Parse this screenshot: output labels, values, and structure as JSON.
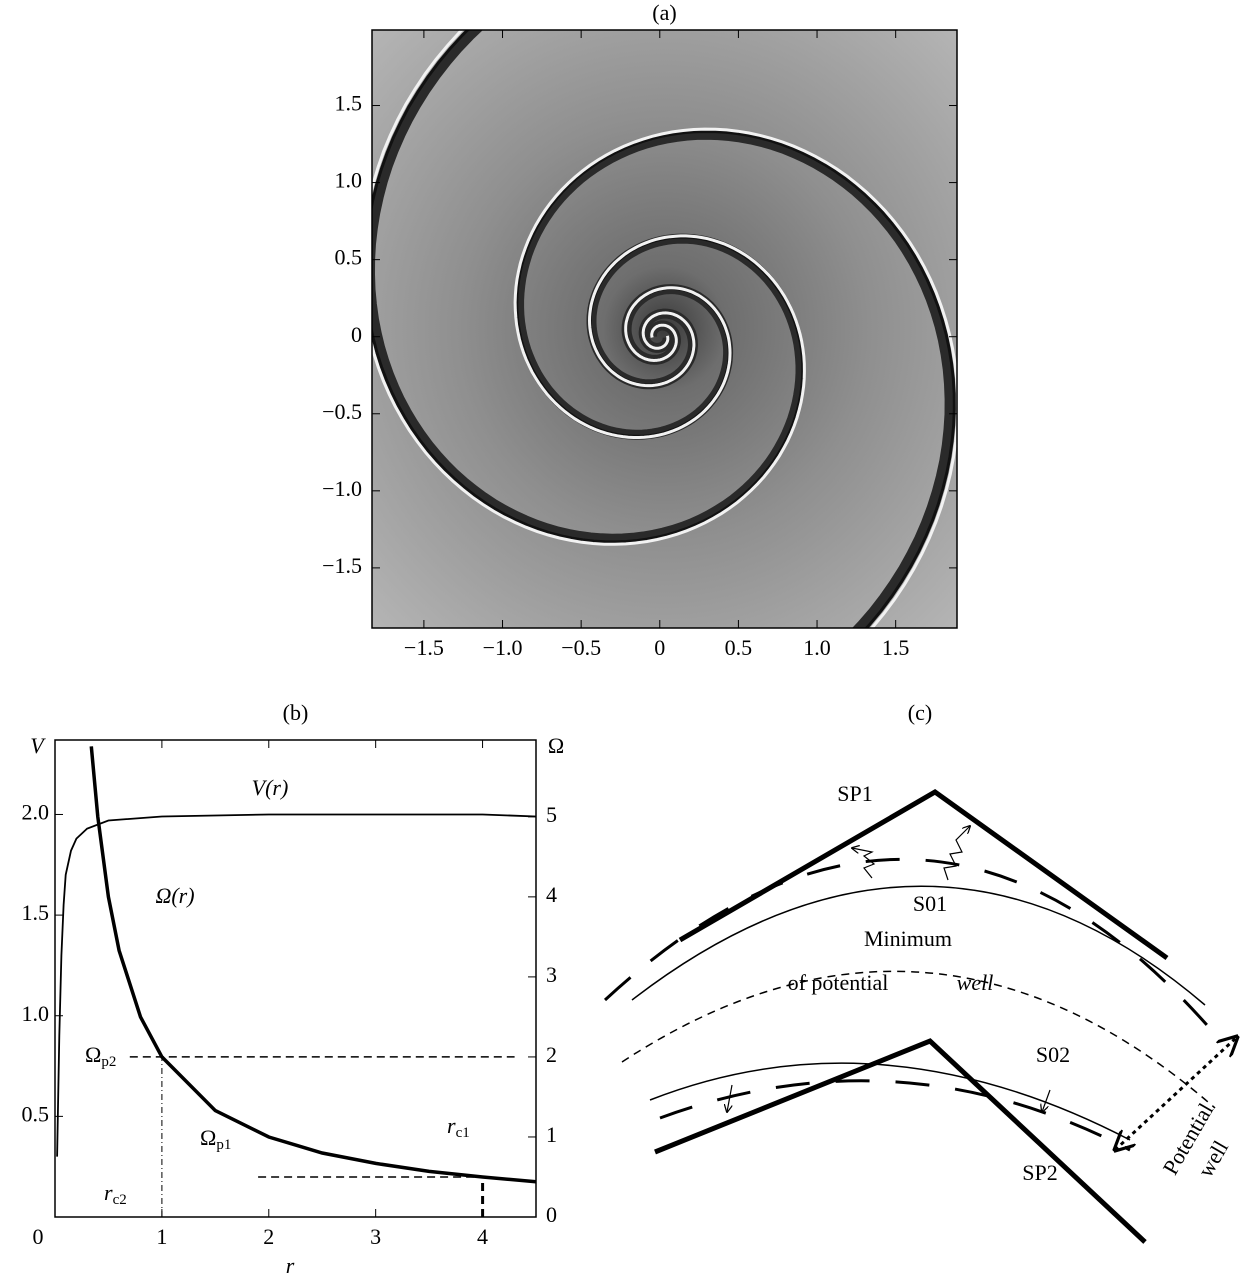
{
  "chart_data": [
    {
      "type": "image",
      "title": "(a)",
      "xlim": [
        -1.83,
        1.89
      ],
      "ylim": [
        -1.89,
        1.99
      ],
      "xticks": [
        {
          "value": -1.5,
          "label": "−1.5"
        },
        {
          "value": -1,
          "label": "−1.0"
        },
        {
          "value": -0.5,
          "label": "−0.5"
        },
        0,
        0.5,
        {
          "value": 1,
          "label": "1.0"
        },
        1.5
      ],
      "yticks": [
        {
          "value": -1.5,
          "label": "−1.5"
        },
        {
          "value": -1,
          "label": "−1.0"
        },
        {
          "value": -0.5,
          "label": "−0.5"
        },
        0,
        0.5,
        {
          "value": 1,
          "label": "1.0"
        },
        1.5
      ]
    },
    {
      "type": "line",
      "title": "(b)",
      "xlabel": "r",
      "ylabel": "V",
      "y2label": "Ω",
      "xlim": [
        0,
        4.5
      ],
      "xticks": [
        0,
        1,
        2,
        3,
        4
      ],
      "ylim": [
        0,
        2.37
      ],
      "yticks": [
        0.5,
        {
          "value": 1,
          "label": "1.0"
        },
        1.5,
        {
          "value": 2,
          "label": "2.0"
        }
      ],
      "y2lim": [
        0,
        5.96
      ],
      "y2ticks": [
        0,
        1,
        2,
        3,
        4,
        5
      ],
      "series": [
        {
          "name": "V(r)",
          "color": "#000000",
          "x": [
            0.02,
            0.04,
            0.06,
            0.08,
            0.1,
            0.15,
            0.2,
            0.3,
            0.5,
            1,
            2,
            3,
            4,
            4.5
          ],
          "values": [
            0.3,
            0.9,
            1.3,
            1.55,
            1.7,
            1.82,
            1.88,
            1.93,
            1.97,
            1.99,
            2.0,
            2.0,
            2.0,
            1.99
          ]
        },
        {
          "name": "Ω(r)",
          "color": "#000000",
          "axis": "y2",
          "x": [
            0.34,
            0.4,
            0.5,
            0.6,
            0.8,
            1,
            1.5,
            2,
            2.5,
            3,
            3.5,
            4,
            4.5
          ],
          "values": [
            5.88,
            5,
            4,
            3.33,
            2.5,
            2,
            1.33,
            1,
            0.8,
            0.67,
            0.57,
            0.5,
            0.44
          ]
        },
        {
          "color": "#000000",
          "axis": "y2",
          "style": "dashed",
          "x": [
            0.7,
            4.3
          ],
          "values": [
            2,
            2
          ]
        },
        {
          "color": "#000000",
          "axis": "y2",
          "style": "dashed",
          "x": [
            1.9,
            4.0
          ],
          "values": [
            0.5,
            0.5
          ]
        },
        {
          "color": "#000000",
          "axis": "y2",
          "style": "dashdot",
          "x": [
            1,
            1
          ],
          "values": [
            0,
            2
          ]
        },
        {
          "color": "#000000",
          "axis": "y2",
          "style": "dashed",
          "x": [
            4,
            4
          ],
          "values": [
            0,
            0.5
          ]
        }
      ],
      "annotations": [
        {
          "text": "Ω",
          "sub": "p2"
        },
        {
          "text": "Ω",
          "sub": "p1"
        },
        {
          "text": "r",
          "sub": "c1"
        },
        {
          "text": "r",
          "sub": "c2"
        }
      ]
    }
  ],
  "diagram": {
    "title": "(c)",
    "labels": [
      "SP1",
      "S01",
      "Minimum",
      "of potential",
      "well",
      "S02",
      "SP2"
    ],
    "well_label": [
      "Potential",
      "well"
    ]
  }
}
